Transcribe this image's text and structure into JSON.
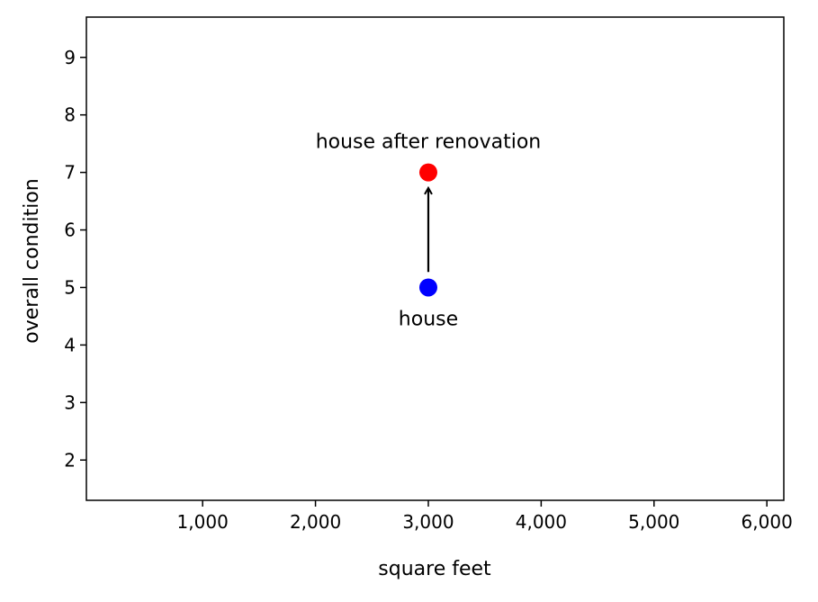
{
  "chart_data": {
    "type": "scatter",
    "xlabel": "square feet",
    "ylabel": "overall condition",
    "xlim": [
      -30,
      6150
    ],
    "ylim": [
      1.3,
      9.7
    ],
    "xticks": [
      1000,
      2000,
      3000,
      4000,
      5000,
      6000
    ],
    "xtick_labels": [
      "1,000",
      "2,000",
      "3,000",
      "4,000",
      "5,000",
      "6,000"
    ],
    "yticks": [
      2,
      3,
      4,
      5,
      6,
      7,
      8,
      9
    ],
    "ytick_labels": [
      "2",
      "3",
      "4",
      "5",
      "6",
      "7",
      "8",
      "9"
    ],
    "grid": false,
    "points": [
      {
        "x": 3000,
        "y": 5,
        "label": "house",
        "color": "#0000ff",
        "label_position": "below"
      },
      {
        "x": 3000,
        "y": 7,
        "label": "house after renovation",
        "color": "#ff0000",
        "label_position": "above"
      }
    ],
    "annotations": [
      {
        "type": "arrow",
        "from": {
          "x": 3000,
          "y": 5.27
        },
        "to": {
          "x": 3000,
          "y": 6.73
        },
        "color": "#000000"
      }
    ]
  }
}
